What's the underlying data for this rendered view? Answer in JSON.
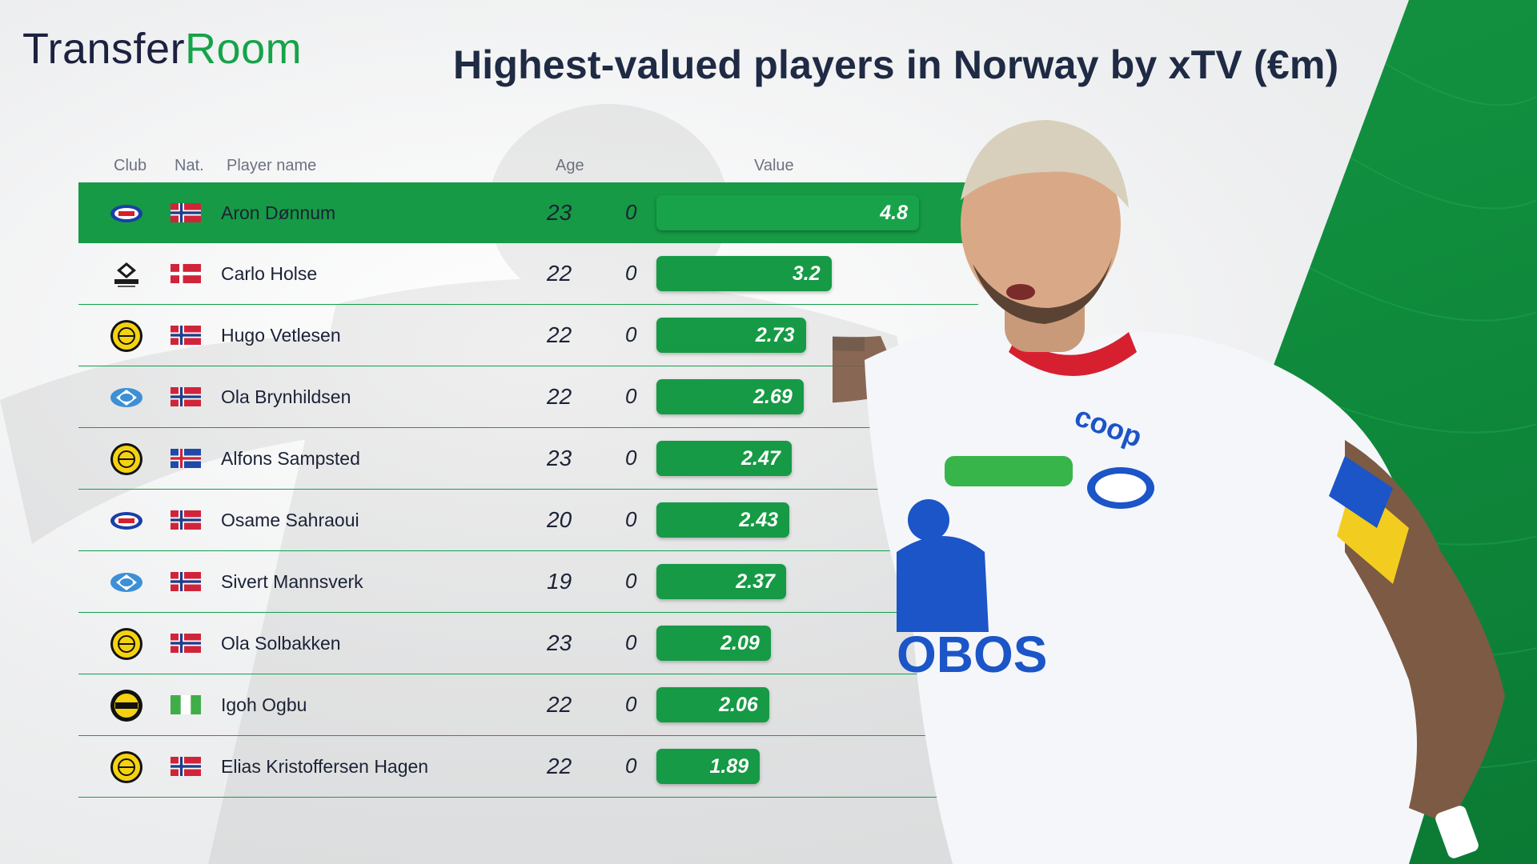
{
  "brand": {
    "part1": "Transfer",
    "part2": "Room"
  },
  "title": "Highest-valued players in Norway by xTV (€m)",
  "columns": {
    "club": "Club",
    "nat": "Nat.",
    "name": "Player name",
    "age": "Age",
    "value": "Value"
  },
  "colors": {
    "accent": "#169a45",
    "brand_dark": "#1d2140"
  },
  "rows": [
    {
      "club_icon": "valerenga-crest",
      "flag_icon": "norway-flag",
      "name": "Aron Dønnum",
      "age": "23",
      "zero": "0",
      "value": "4.8"
    },
    {
      "club_icon": "rosenborg-crest",
      "flag_icon": "denmark-flag",
      "name": "Carlo Holse",
      "age": "22",
      "zero": "0",
      "value": "3.2"
    },
    {
      "club_icon": "bodo-glimt-crest",
      "flag_icon": "norway-flag",
      "name": "Hugo Vetlesen",
      "age": "22",
      "zero": "0",
      "value": "2.73"
    },
    {
      "club_icon": "molde-crest",
      "flag_icon": "norway-flag",
      "name": "Ola Brynhildsen",
      "age": "22",
      "zero": "0",
      "value": "2.69"
    },
    {
      "club_icon": "bodo-glimt-crest",
      "flag_icon": "iceland-flag",
      "name": "Alfons Sampsted",
      "age": "23",
      "zero": "0",
      "value": "2.47"
    },
    {
      "club_icon": "valerenga-crest",
      "flag_icon": "norway-flag",
      "name": "Osame Sahraoui",
      "age": "20",
      "zero": "0",
      "value": "2.43"
    },
    {
      "club_icon": "molde-crest",
      "flag_icon": "norway-flag",
      "name": "Sivert Mannsverk",
      "age": "19",
      "zero": "0",
      "value": "2.37"
    },
    {
      "club_icon": "bodo-glimt-crest",
      "flag_icon": "norway-flag",
      "name": "Ola Solbakken",
      "age": "23",
      "zero": "0",
      "value": "2.09"
    },
    {
      "club_icon": "lillestrom-crest",
      "flag_icon": "nigeria-flag",
      "name": "Igoh Ogbu",
      "age": "22",
      "zero": "0",
      "value": "2.06"
    },
    {
      "club_icon": "bodo-glimt-crest",
      "flag_icon": "norway-flag",
      "name": "Elias Kristoffersen Hagen",
      "age": "22",
      "zero": "0",
      "value": "1.89"
    }
  ],
  "chart_data": {
    "type": "bar",
    "orientation": "horizontal",
    "title": "Highest-valued players in Norway by xTV (€m)",
    "categories": [
      "Aron Dønnum",
      "Carlo Holse",
      "Hugo Vetlesen",
      "Ola Brynhildsen",
      "Alfons Sampsted",
      "Osame Sahraoui",
      "Sivert Mannsverk",
      "Ola Solbakken",
      "Igoh Ogbu",
      "Elias Kristoffersen Hagen"
    ],
    "values": [
      4.8,
      3.2,
      2.73,
      2.69,
      2.47,
      2.43,
      2.37,
      2.09,
      2.06,
      1.89
    ],
    "xlim": [
      0,
      4.8
    ],
    "grid": false
  }
}
